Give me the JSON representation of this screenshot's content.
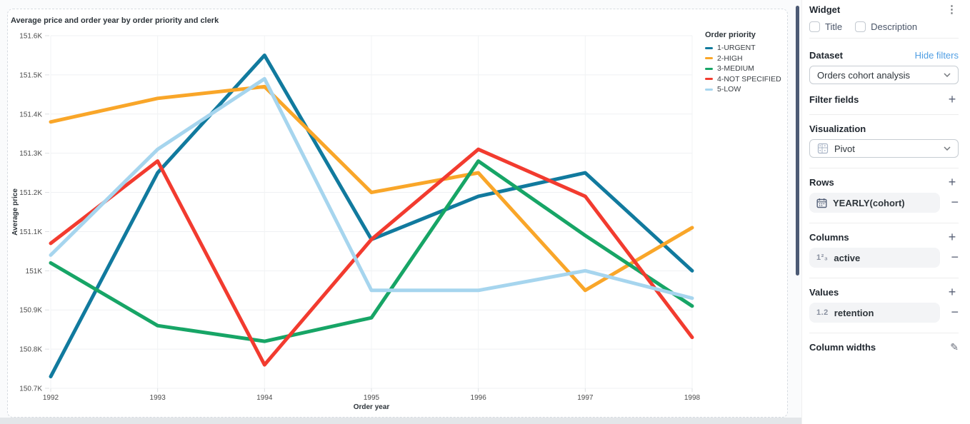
{
  "chart_data": {
    "type": "line",
    "title": "Average price and order year by order priority and clerk",
    "xlabel": "Order year",
    "ylabel": "Average price",
    "legend_title": "Order priority",
    "legend_position": "top-right",
    "grid": true,
    "x": [
      1992,
      1993,
      1994,
      1995,
      1996,
      1997,
      1998
    ],
    "ylim": [
      150.7,
      151.6
    ],
    "y_unit": "K",
    "yticks": [
      {
        "v": 151.6,
        "label": "151.6K"
      },
      {
        "v": 151.5,
        "label": "151.5K"
      },
      {
        "v": 151.4,
        "label": "151.4K"
      },
      {
        "v": 151.3,
        "label": "151.3K"
      },
      {
        "v": 151.2,
        "label": "151.2K"
      },
      {
        "v": 151.1,
        "label": "151.1K"
      },
      {
        "v": 151.0,
        "label": "151K"
      },
      {
        "v": 150.9,
        "label": "150.9K"
      },
      {
        "v": 150.8,
        "label": "150.8K"
      },
      {
        "v": 150.7,
        "label": "150.7K"
      }
    ],
    "series": [
      {
        "name": "1-URGENT",
        "color": "#117A9E",
        "values": [
          150.73,
          151.25,
          151.55,
          151.08,
          151.19,
          151.25,
          151.0
        ]
      },
      {
        "name": "2-HIGH",
        "color": "#F9A629",
        "values": [
          151.38,
          151.44,
          151.47,
          151.2,
          151.25,
          150.95,
          151.11
        ]
      },
      {
        "name": "3-MEDIUM",
        "color": "#17A566",
        "values": [
          151.02,
          150.86,
          150.82,
          150.88,
          151.28,
          151.09,
          150.91
        ]
      },
      {
        "name": "4-NOT SPECIFIED",
        "color": "#F23B2F",
        "values": [
          151.07,
          151.28,
          150.76,
          151.08,
          151.31,
          151.19,
          150.83
        ]
      },
      {
        "name": "5-LOW",
        "color": "#A6D5EE",
        "values": [
          151.04,
          151.31,
          151.49,
          150.95,
          150.95,
          151.0,
          150.93
        ]
      }
    ]
  },
  "sidebar": {
    "widget": {
      "heading": "Widget",
      "title_checkbox": "Title",
      "description_checkbox": "Description"
    },
    "dataset": {
      "heading": "Dataset",
      "hide_filters": "Hide filters",
      "selected": "Orders cohort analysis"
    },
    "filter_fields": {
      "heading": "Filter fields"
    },
    "visualization": {
      "heading": "Visualization",
      "selected": "Pivot"
    },
    "rows": {
      "heading": "Rows",
      "field": "YEARLY(cohort)"
    },
    "columns": {
      "heading": "Columns",
      "field": "active"
    },
    "values": {
      "heading": "Values",
      "field": "retention"
    },
    "column_widths": {
      "heading": "Column widths"
    }
  },
  "icons": {
    "kebab": "⋮",
    "plus": "+",
    "minus": "−",
    "pencil": "✎",
    "number123": "1²₃",
    "number12": "1.2"
  }
}
